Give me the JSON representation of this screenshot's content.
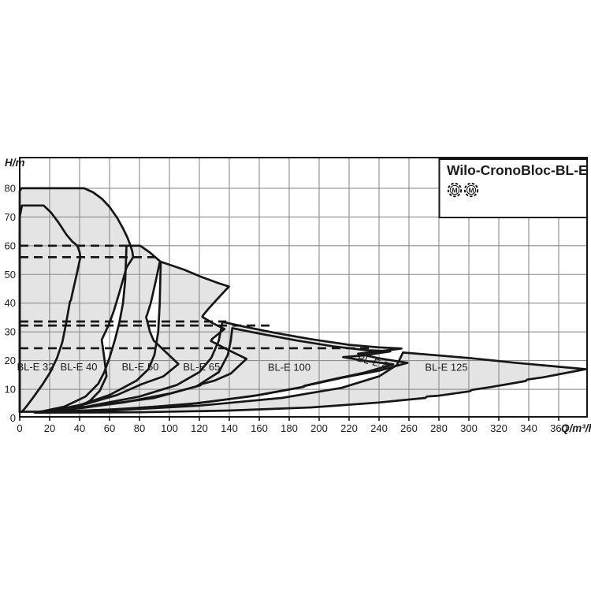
{
  "chart_data": {
    "type": "area",
    "title": "Wilo-CronoBloc-BL-E",
    "xlabel": "Q/m³/h",
    "ylabel": "H/m",
    "xlim": [
      0,
      379
    ],
    "ylim": [
      0,
      90
    ],
    "grid": true,
    "xticks": [
      0,
      20,
      40,
      60,
      80,
      100,
      120,
      140,
      160,
      180,
      200,
      220,
      240,
      260,
      280,
      300,
      320,
      340,
      360
    ],
    "yticks": [
      0,
      10,
      20,
      30,
      40,
      50,
      60,
      70,
      80
    ],
    "motor_icon": "M",
    "colors": {
      "fill": "#e4e4e4",
      "grid": "#8c8c8c",
      "line": "#161616",
      "background": "#ffffff"
    },
    "dashed_limit_lines": [
      {
        "h": 60,
        "u1": 0,
        "u2": 72.5
      },
      {
        "h": 56,
        "u1": 0,
        "u2": 94.5
      },
      {
        "h": 33.6,
        "u1": 0,
        "u2": 138
      },
      {
        "h": 32.2,
        "u1": 0,
        "u2": 170
      },
      {
        "h": 24.3,
        "u1": 0,
        "u2": 234
      }
    ],
    "series": [
      {
        "name": "BL-E 32",
        "points": [
          [
            0,
            2
          ],
          [
            0,
            70
          ],
          [
            1.5,
            74
          ],
          [
            16,
            74
          ],
          [
            21,
            71.5
          ],
          [
            26,
            68
          ],
          [
            31,
            64
          ],
          [
            35,
            61.5
          ],
          [
            38.5,
            60
          ],
          [
            40,
            57.8
          ],
          [
            40.5,
            56
          ],
          [
            38.5,
            51
          ],
          [
            35,
            43
          ],
          [
            34.2,
            41
          ],
          [
            33.6,
            40.6
          ],
          [
            31,
            33
          ],
          [
            28.5,
            26.5
          ],
          [
            25,
            21
          ],
          [
            20.5,
            16
          ],
          [
            15,
            11.5
          ],
          [
            9.5,
            7.5
          ],
          [
            4.5,
            4
          ],
          [
            1.5,
            2.2
          ]
        ]
      },
      {
        "name": "BL-E 40",
        "points": [
          [
            0,
            2.2
          ],
          [
            0,
            79
          ],
          [
            1.2,
            80
          ],
          [
            43,
            80
          ],
          [
            49,
            78.6
          ],
          [
            55,
            76.3
          ],
          [
            60,
            73.5
          ],
          [
            65,
            69.8
          ],
          [
            69,
            66
          ],
          [
            72,
            62.8
          ],
          [
            74,
            60
          ],
          [
            75.2,
            58
          ],
          [
            75.8,
            56
          ],
          [
            71.5,
            52.5
          ],
          [
            71,
            51.8
          ],
          [
            66.5,
            43.5
          ],
          [
            63,
            37.5
          ],
          [
            59.5,
            32.5
          ],
          [
            55.5,
            28
          ],
          [
            54.8,
            27.2
          ],
          [
            56.5,
            21
          ],
          [
            58,
            14.6
          ],
          [
            53.5,
            9.5
          ],
          [
            47,
            6
          ],
          [
            40,
            4
          ],
          [
            28,
            2.8
          ],
          [
            12,
            2.2
          ]
        ]
      },
      {
        "name": "BL-E 50",
        "points": [
          [
            14,
            2.2
          ],
          [
            30,
            4
          ],
          [
            44,
            7.5
          ],
          [
            52.5,
            12
          ],
          [
            56.5,
            16
          ],
          [
            60,
            21
          ],
          [
            63.5,
            27
          ],
          [
            66.5,
            33
          ],
          [
            69,
            40
          ],
          [
            70.5,
            48
          ],
          [
            71,
            55
          ],
          [
            71.3,
            60
          ],
          [
            80.5,
            60
          ],
          [
            87,
            57.6
          ],
          [
            93.7,
            54.6
          ],
          [
            91,
            48
          ],
          [
            87.5,
            40
          ],
          [
            85,
            35.8
          ],
          [
            84.4,
            35.2
          ],
          [
            87,
            30
          ],
          [
            89.5,
            27
          ],
          [
            106,
            18.8
          ],
          [
            96,
            14.5
          ],
          [
            81.5,
            11.8
          ],
          [
            65,
            8
          ],
          [
            45,
            5
          ],
          [
            28,
            3.2
          ]
        ]
      },
      {
        "name": "BL-E 65",
        "points": [
          [
            18,
            2.2
          ],
          [
            40,
            4.5
          ],
          [
            60,
            8
          ],
          [
            78,
            13
          ],
          [
            86,
            17
          ],
          [
            90,
            22
          ],
          [
            92.5,
            30
          ],
          [
            93.5,
            40
          ],
          [
            94,
            50
          ],
          [
            94.2,
            54.4
          ],
          [
            100,
            53.4
          ],
          [
            110,
            51.6
          ],
          [
            122,
            49
          ],
          [
            133,
            46.9
          ],
          [
            139.8,
            45.8
          ],
          [
            133,
            42
          ],
          [
            126,
            38
          ],
          [
            122.5,
            35.8
          ],
          [
            122,
            35.2
          ],
          [
            129,
            33
          ],
          [
            136.8,
            31
          ],
          [
            128.5,
            27.5
          ],
          [
            127.8,
            26.8
          ],
          [
            140,
            23.5
          ],
          [
            151.5,
            20.6
          ],
          [
            141,
            15.5
          ],
          [
            130,
            13
          ],
          [
            121.5,
            11.8
          ],
          [
            120.8,
            11.4
          ],
          [
            100,
            8.5
          ],
          [
            70,
            5.5
          ],
          [
            42,
            3.5
          ]
        ]
      },
      {
        "name": "BL-E 80",
        "points": [
          [
            16,
            2.1
          ],
          [
            50,
            4.2
          ],
          [
            90,
            7
          ],
          [
            118,
            11
          ],
          [
            133,
            16
          ],
          [
            139,
            22
          ],
          [
            141,
            27
          ],
          [
            142,
            31.3
          ],
          [
            160,
            29.4
          ],
          [
            185,
            27
          ],
          [
            210,
            24.9
          ],
          [
            232,
            23.6
          ],
          [
            247.5,
            23.2
          ],
          [
            230,
            21.8
          ],
          [
            216,
            21.2
          ],
          [
            232,
            19.8
          ],
          [
            249.5,
            18.7
          ],
          [
            230,
            15.8
          ],
          [
            205,
            13
          ],
          [
            190,
            11.2
          ],
          [
            189,
            10.8
          ],
          [
            155,
            7.6
          ],
          [
            110,
            4.6
          ],
          [
            60,
            2.9
          ]
        ]
      },
      {
        "name": "BL-E 100",
        "points": [
          [
            15,
            2.2
          ],
          [
            45,
            4
          ],
          [
            80,
            7.5
          ],
          [
            105,
            11.5
          ],
          [
            120,
            16
          ],
          [
            128,
            21
          ],
          [
            133,
            27
          ],
          [
            135.5,
            33.5
          ],
          [
            150,
            31.8
          ],
          [
            170,
            29.7
          ],
          [
            195,
            27.4
          ],
          [
            220,
            25.5
          ],
          [
            240,
            24.6
          ],
          [
            255,
            24.2
          ],
          [
            240,
            23.2
          ],
          [
            226,
            22.4
          ],
          [
            240,
            20.8
          ],
          [
            259,
            19.2
          ],
          [
            240,
            16.5
          ],
          [
            215,
            14
          ],
          [
            197,
            11.9
          ],
          [
            190.5,
            11.2
          ],
          [
            189.8,
            10.9
          ],
          [
            160,
            8
          ],
          [
            120,
            5.2
          ],
          [
            75,
            3.3
          ],
          [
            40,
            2.5
          ]
        ]
      },
      {
        "name": "BL-E 125",
        "points": [
          [
            10,
            1.9
          ],
          [
            60,
            2.6
          ],
          [
            120,
            4.3
          ],
          [
            175,
            7
          ],
          [
            215,
            10.5
          ],
          [
            240,
            14.5
          ],
          [
            252,
            18.5
          ],
          [
            256,
            22.8
          ],
          [
            275,
            22
          ],
          [
            300,
            20.9
          ],
          [
            330,
            19.3
          ],
          [
            355,
            18.1
          ],
          [
            378,
            17
          ],
          [
            350,
            14.2
          ],
          [
            339,
            13.4
          ],
          [
            338,
            12.9
          ],
          [
            315,
            10.8
          ],
          [
            302,
            9.8
          ],
          [
            300.6,
            9.3
          ],
          [
            280,
            7.8
          ],
          [
            272,
            7.5
          ],
          [
            271,
            7
          ],
          [
            240,
            5.4
          ],
          [
            195,
            3.7
          ],
          [
            140,
            2.6
          ],
          [
            80,
            2
          ]
        ]
      }
    ],
    "region_labels": [
      {
        "text": "BL-E 32",
        "u": 10.5,
        "h": 16.6,
        "rotate": 0
      },
      {
        "text": "BL-E 40",
        "u": 39.5,
        "h": 16.6,
        "rotate": 0
      },
      {
        "text": "BL-E 50",
        "u": 80.5,
        "h": 16.6,
        "rotate": 0
      },
      {
        "text": "BL-E 65",
        "u": 121.5,
        "h": 16.6,
        "rotate": 0
      },
      {
        "text": "BL-E 100",
        "u": 180,
        "h": 16.4,
        "rotate": 0
      },
      {
        "text": "BL-E 80",
        "u": 237,
        "h": 18.2,
        "rotate": 15
      },
      {
        "text": "BL-E 125",
        "u": 285,
        "h": 16.4,
        "rotate": 0
      }
    ]
  }
}
